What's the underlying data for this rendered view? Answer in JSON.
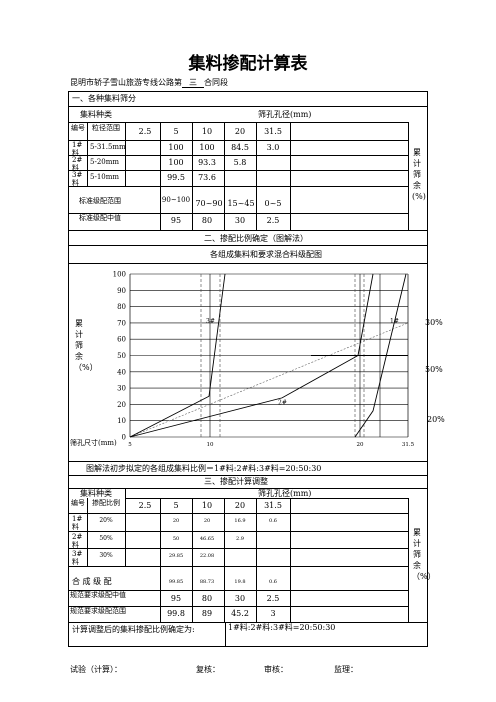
{
  "title": "集料掺配计算表",
  "subtitle": {
    "prefix": "昆明市轿子雪山旅游专线公路第",
    "section": "三",
    "suffix": "合同段"
  },
  "section1": {
    "heading": "一、各种集料筛分",
    "col_type": "集料种类",
    "col_sieve": "筛孔孔径(mm)",
    "col_no": "编号",
    "col_range": "粒径范围",
    "sizes": [
      "2.5",
      "5",
      "10",
      "20",
      "31.5"
    ],
    "rows": [
      {
        "no": "1#料",
        "range": "5-31.5mm",
        "vals": [
          "",
          "100",
          "100",
          "84.5",
          "3.0"
        ]
      },
      {
        "no": "2#料",
        "range": "5-20mm",
        "vals": [
          "",
          "100",
          "93.3",
          "5.8",
          ""
        ]
      },
      {
        "no": "3#料",
        "range": "5-10mm",
        "vals": [
          "",
          "99.5",
          "73.6",
          "",
          ""
        ]
      }
    ],
    "spec_range_label": "标准级配范围",
    "spec_range": [
      "",
      "90~100",
      "70~90",
      "15~45",
      "0~5"
    ],
    "spec_mid_label": "标准级配中值",
    "spec_mid": [
      "",
      "95",
      "80",
      "30",
      "2.5"
    ],
    "side_label": "累计筛余(%)"
  },
  "section2": {
    "heading": "二、掺配比例确定（图解法）",
    "chart_title": "各组成集料和要求混合料级配图",
    "ylabel": "累计筛余（%）",
    "xlabel": "筛孔尺寸(mm)",
    "conclusion": "图解法初步拟定的各组成集料比例＝1#料:2#料:3#料=20:50:30",
    "pct_30": "30%",
    "pct_50": "50%",
    "pct_20": "20%",
    "label_3": "3#",
    "label_2": "2#",
    "label_1": "1#"
  },
  "chart_data": {
    "type": "line",
    "title": "各组成集料和要求混合料级配图",
    "xlabel": "筛孔尺寸(mm)",
    "ylabel": "累计筛余（%）",
    "ylim": [
      0,
      100
    ],
    "yticks": [
      "100",
      "90",
      "80",
      "70",
      "60",
      "50",
      "40",
      "30",
      "20",
      "10",
      "0"
    ],
    "xticks": [
      "5",
      "10",
      "20",
      "31.5"
    ],
    "series": [
      {
        "name": "3#",
        "values": [
          0,
          25,
          100
        ]
      },
      {
        "name": "2#",
        "values": [
          0,
          6,
          50,
          100
        ]
      },
      {
        "name": "1#",
        "values": [
          0,
          16,
          100
        ]
      }
    ]
  },
  "section3": {
    "heading": "三、掺配计算调整",
    "col_type": "集料种类",
    "col_sieve": "筛孔孔径(mm)",
    "col_no": "编号",
    "col_ratio": "掺配比例",
    "sizes": [
      "2.5",
      "5",
      "10",
      "20",
      "31.5"
    ],
    "rows": [
      {
        "no": "1#料",
        "ratio": "20%",
        "vals": [
          "",
          "20",
          "20",
          "16.9",
          "0.6"
        ]
      },
      {
        "no": "2#料",
        "ratio": "50%",
        "vals": [
          "",
          "50",
          "46.65",
          "2.9",
          ""
        ]
      },
      {
        "no": "3#料",
        "ratio": "30%",
        "vals": [
          "",
          "29.85",
          "22.08",
          "",
          ""
        ]
      }
    ],
    "mix_label": "合 成 级 配",
    "mix": [
      "",
      "99.85",
      "88.73",
      "19.8",
      "0.6"
    ],
    "mid_label": "规范要求级配中值",
    "mid": [
      "",
      "95",
      "80",
      "30",
      "2.5"
    ],
    "range_label": "规范要求级配范围",
    "range": [
      "",
      "99.8",
      "89",
      "45.2",
      "3"
    ],
    "final_label": "计算调整后的集料掺配比例确定为:",
    "final_value": "1#料:2#料:3#料=20:50:30",
    "side_label": "累计筛余（%）"
  },
  "footer": {
    "test": "试验（计算）：",
    "review": "复核：",
    "audit": "审核：",
    "supervisor": "监理："
  }
}
